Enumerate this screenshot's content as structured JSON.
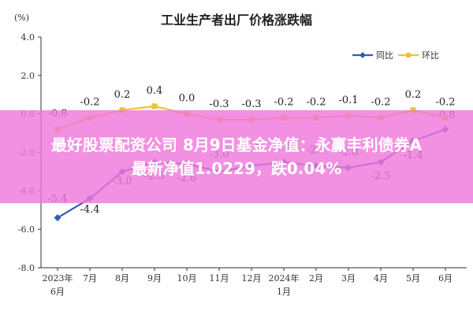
{
  "chart_data": {
    "type": "line",
    "title": "工业生产者出厂价格涨跌幅",
    "unit_label": "(%)",
    "categories": [
      "2023年\n6月",
      "7月",
      "8月",
      "9月",
      "10月",
      "11月",
      "12月",
      "2024年\n1月",
      "2月",
      "3月",
      "4月",
      "5月",
      "6月"
    ],
    "ylim": [
      -8.0,
      4.0
    ],
    "yticks": [
      "4.0",
      "2.0",
      "0.0",
      "-2.0",
      "-4.0",
      "-6.0",
      "-8.0"
    ],
    "grid": false,
    "legend_position": "top-right",
    "series": [
      {
        "name": "同比",
        "color": "#2f5fb3",
        "values": [
          -5.4,
          -4.4,
          -3.0,
          -2.5,
          -2.6,
          -3.0,
          -2.7,
          -2.5,
          -2.7,
          -2.8,
          -2.5,
          -1.4,
          -0.8
        ],
        "labels": [
          "-5.4",
          "-4.4",
          "-3.0",
          "-2.5",
          "-2.6",
          "-3.0",
          "-2.7",
          "-2.5",
          "-2.7",
          "-2.8",
          "-2.5",
          "-1.4",
          "-0.8"
        ]
      },
      {
        "name": "环比",
        "color": "#f2c12e",
        "values": [
          -0.8,
          -0.2,
          0.2,
          0.4,
          0.0,
          -0.3,
          -0.3,
          -0.2,
          -0.2,
          -0.1,
          -0.2,
          0.2,
          -0.2
        ],
        "labels": [
          "-0.8",
          "-0.2",
          "0.2",
          "0.4",
          "0.0",
          "-0.3",
          "-0.3",
          "-0.2",
          "-0.2",
          "-0.1",
          "-0.2",
          "0.2",
          "-0.2"
        ]
      }
    ]
  },
  "banner": {
    "line1": "最好股票配资公司 8月9日基金净值：永赢丰利债券A",
    "line2": "最新净值1.0229，跌0.04%"
  }
}
